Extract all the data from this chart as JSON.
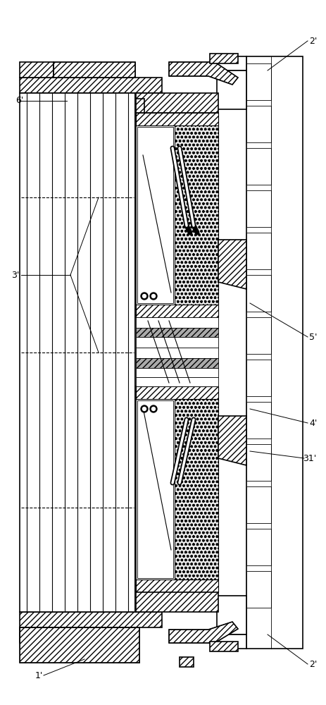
{
  "bg_color": "#ffffff",
  "figsize": [
    4.63,
    10.0
  ],
  "dpi": 100
}
